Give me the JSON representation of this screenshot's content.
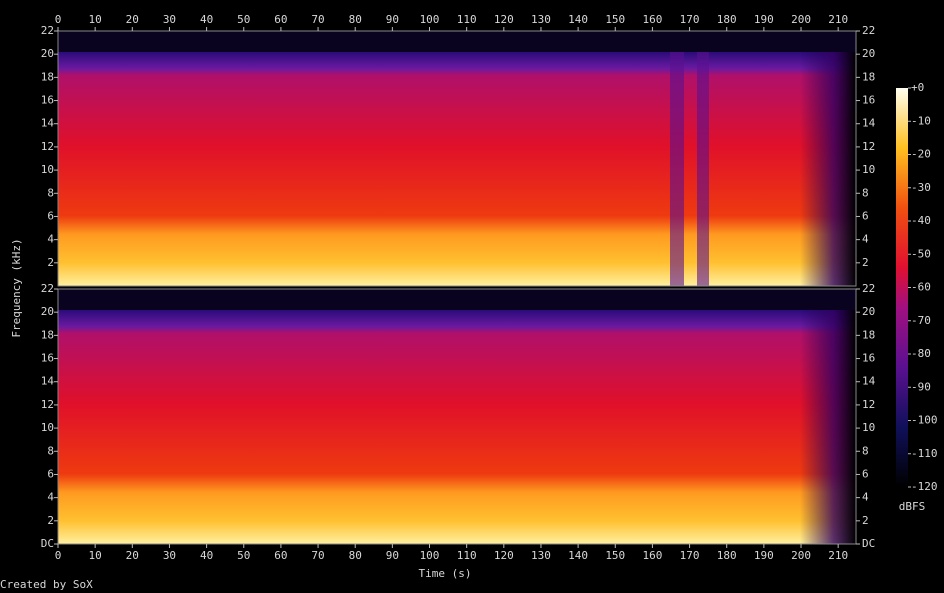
{
  "chart_data": {
    "type": "spectrogram",
    "xlabel": "Time (s)",
    "ylabel": "Frequency (kHz)",
    "footer": "Created by SoX",
    "xlim": [
      0,
      214.8
    ],
    "xticks": [
      0,
      10,
      20,
      30,
      40,
      50,
      60,
      70,
      80,
      90,
      100,
      110,
      120,
      130,
      140,
      150,
      160,
      170,
      180,
      190,
      200,
      210
    ],
    "channels": [
      {
        "ylim": [
          0,
          22
        ],
        "yticks": [
          2,
          4,
          6,
          8,
          10,
          12,
          14,
          16,
          18,
          20,
          22
        ]
      },
      {
        "ylim": [
          0,
          22
        ],
        "yticks": [
          {
            "value": 0,
            "label": "DC"
          },
          2,
          4,
          6,
          8,
          10,
          12,
          14,
          16,
          18,
          20,
          22
        ]
      }
    ],
    "colorbar": {
      "label": "dBFS",
      "lim": [
        -120,
        0
      ],
      "ticks": [
        {
          "value": 0,
          "label": "+0"
        },
        -10,
        -20,
        -30,
        -40,
        -50,
        -60,
        -70,
        -80,
        -90,
        -100,
        -110,
        -120
      ]
    }
  }
}
